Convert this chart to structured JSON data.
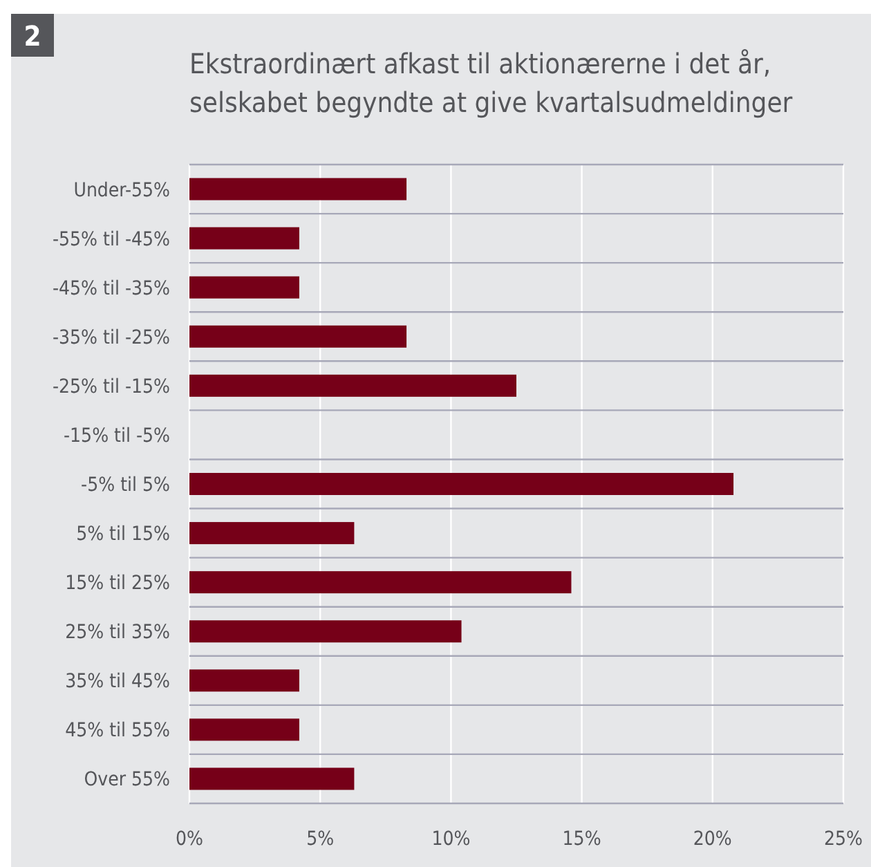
{
  "chart_data": {
    "type": "bar",
    "orientation": "horizontal",
    "title": "Ekstraordinært afkast til aktionærerne i det år,\nselskabet begyndte at give kvartalsudmeldinger",
    "annotations": [
      "2"
    ],
    "categories": [
      "Under-55%",
      "-55% til -45%",
      "-45% til -35%",
      "-35% til -25%",
      "-25% til -15%",
      "-15% til -5%",
      "-5% til 5%",
      "5% til 15%",
      "15% til 25%",
      "25% til 35%",
      "35% til 45%",
      "45% til 55%",
      "Over 55%"
    ],
    "values": [
      8.3,
      4.2,
      4.2,
      8.3,
      12.5,
      0,
      20.8,
      6.3,
      14.6,
      10.4,
      4.2,
      4.2,
      6.3
    ],
    "color": "#760018",
    "xlim": [
      0,
      25
    ],
    "xticks": [
      {
        "value": 0,
        "label": "0%"
      },
      {
        "value": 5,
        "label": "5%"
      },
      {
        "value": 10,
        "label": "10%"
      },
      {
        "value": 15,
        "label": "15%"
      },
      {
        "value": 20,
        "label": "20%"
      },
      {
        "value": 25,
        "label": "25%"
      }
    ],
    "grid": "x"
  }
}
